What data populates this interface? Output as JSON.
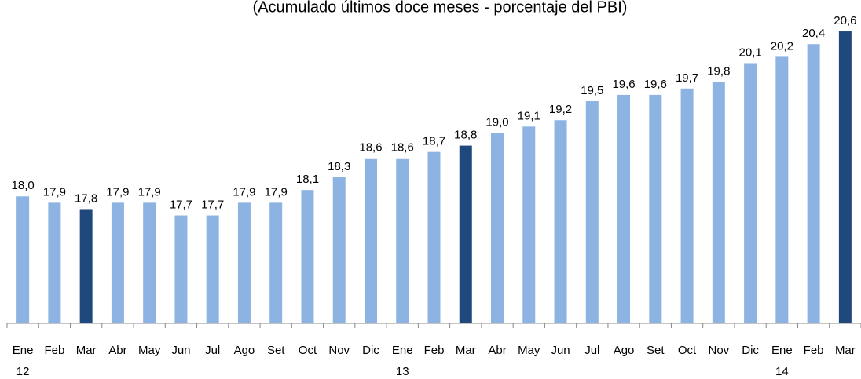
{
  "chart_data": {
    "type": "bar",
    "title": "(Acumulado últimos doce meses - porcentaje del PBI)",
    "categories": [
      "Ene",
      "Feb",
      "Mar",
      "Abr",
      "May",
      "Jun",
      "Jul",
      "Ago",
      "Set",
      "Oct",
      "Nov",
      "Dic",
      "Ene",
      "Feb",
      "Mar",
      "Abr",
      "May",
      "Jun",
      "Jul",
      "Ago",
      "Set",
      "Oct",
      "Nov",
      "Dic",
      "Ene",
      "Feb",
      "Mar"
    ],
    "year_labels": [
      "12",
      null,
      null,
      null,
      null,
      null,
      null,
      null,
      null,
      null,
      null,
      null,
      "13",
      null,
      null,
      null,
      null,
      null,
      null,
      null,
      null,
      null,
      null,
      null,
      "14",
      null,
      null
    ],
    "values": [
      18.0,
      17.9,
      17.8,
      17.9,
      17.9,
      17.7,
      17.7,
      17.9,
      17.9,
      18.1,
      18.3,
      18.6,
      18.6,
      18.7,
      18.8,
      19.0,
      19.1,
      19.2,
      19.5,
      19.6,
      19.6,
      19.7,
      19.8,
      20.1,
      20.2,
      20.4,
      20.6
    ],
    "value_labels": [
      "18,0",
      "17,9",
      "17,8",
      "17,9",
      "17,9",
      "17,7",
      "17,7",
      "17,9",
      "17,9",
      "18,1",
      "18,3",
      "18,6",
      "18,6",
      "18,7",
      "18,8",
      "19,0",
      "19,1",
      "19,2",
      "19,5",
      "19,6",
      "19,6",
      "19,7",
      "19,8",
      "20,1",
      "20,2",
      "20,4",
      "20,6"
    ],
    "colors": [
      "#8db3e2",
      "#8db3e2",
      "#1f497d",
      "#8db3e2",
      "#8db3e2",
      "#8db3e2",
      "#8db3e2",
      "#8db3e2",
      "#8db3e2",
      "#8db3e2",
      "#8db3e2",
      "#8db3e2",
      "#8db3e2",
      "#8db3e2",
      "#1f497d",
      "#8db3e2",
      "#8db3e2",
      "#8db3e2",
      "#8db3e2",
      "#8db3e2",
      "#8db3e2",
      "#8db3e2",
      "#8db3e2",
      "#8db3e2",
      "#8db3e2",
      "#8db3e2",
      "#1f497d"
    ],
    "ylim": [
      16,
      21
    ]
  }
}
